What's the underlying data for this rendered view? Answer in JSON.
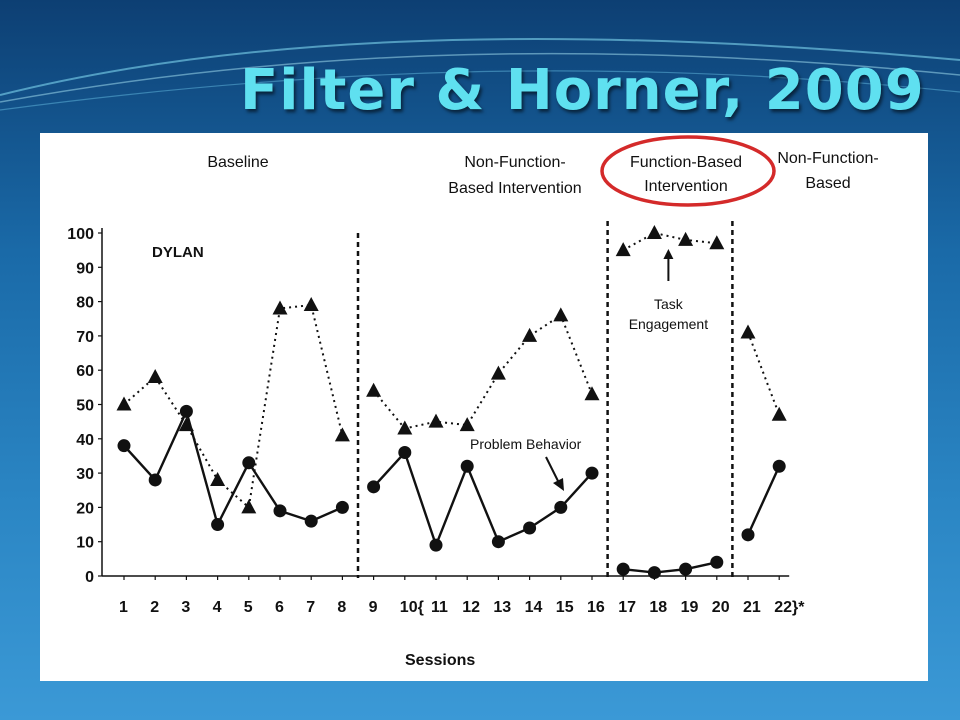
{
  "slide": {
    "title": "Filter & Horner, 2009"
  },
  "chart_data": {
    "type": "line",
    "title": "",
    "participant": "DYLAN",
    "xlabel": "Sessions",
    "ylabel": "",
    "ylim": [
      0,
      100
    ],
    "y_ticks": [
      0,
      10,
      20,
      30,
      40,
      50,
      60,
      70,
      80,
      90,
      100
    ],
    "x_tick_labels": [
      "1",
      "2",
      "3",
      "4",
      "5",
      "6",
      "7",
      "8",
      "9",
      "10{",
      "11",
      "12",
      "13",
      "14",
      "15",
      "16",
      "17",
      "18",
      "19",
      "20",
      "21",
      "22}*"
    ],
    "phases": [
      {
        "label_lines": [
          "Baseline"
        ],
        "sessions": [
          1,
          8
        ]
      },
      {
        "label_lines": [
          "Non-Function-",
          "Based Intervention"
        ],
        "sessions": [
          9,
          16
        ]
      },
      {
        "label_lines": [
          "Function-Based",
          "Intervention"
        ],
        "sessions": [
          17,
          20
        ],
        "highlighted": true
      },
      {
        "label_lines": [
          "Non-Function-",
          "Based"
        ],
        "sessions": [
          21,
          22
        ]
      }
    ],
    "series": [
      {
        "name": "Task Engagement",
        "marker": "triangle",
        "line_style": "dotted",
        "segments": [
          {
            "x": [
              1,
              2,
              3,
              4,
              5,
              6,
              7,
              8
            ],
            "y": [
              50,
              58,
              44,
              28,
              20,
              78,
              79,
              41
            ]
          },
          {
            "x": [
              9,
              10,
              11,
              12,
              13,
              14,
              15,
              16
            ],
            "y": [
              54,
              43,
              45,
              44,
              59,
              70,
              76,
              53
            ]
          },
          {
            "x": [
              17,
              18,
              19,
              20
            ],
            "y": [
              95,
              100,
              98,
              97
            ]
          },
          {
            "x": [
              21,
              22
            ],
            "y": [
              71,
              47
            ]
          }
        ]
      },
      {
        "name": "Problem Behavior",
        "marker": "circle",
        "line_style": "solid",
        "segments": [
          {
            "x": [
              1,
              2,
              3,
              4,
              5,
              6,
              7,
              8
            ],
            "y": [
              38,
              28,
              48,
              15,
              33,
              19,
              16,
              20
            ]
          },
          {
            "x": [
              9,
              10,
              11,
              12,
              13,
              14,
              15,
              16
            ],
            "y": [
              26,
              36,
              9,
              32,
              10,
              14,
              20,
              30
            ]
          },
          {
            "x": [
              17,
              18,
              19,
              20
            ],
            "y": [
              2,
              1,
              2,
              4
            ]
          },
          {
            "x": [
              21,
              22
            ],
            "y": [
              12,
              32
            ]
          }
        ]
      }
    ],
    "annotations": [
      {
        "text_lines": [
          "Task",
          "Engagement"
        ],
        "points_to": "Task Engagement"
      },
      {
        "text_lines": [
          "Problem Behavior"
        ],
        "points_to": "Problem Behavior"
      }
    ],
    "highlight_color": "#d42a2a"
  }
}
